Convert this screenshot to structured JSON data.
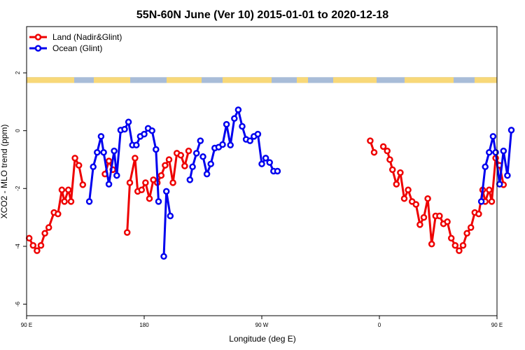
{
  "chart_data": {
    "type": "line",
    "title": "55N-60N June (Ver 10)   2015-01-01 to 2020-12-18",
    "xlabel": "Longitude (deg E)",
    "ylabel": "XCO2 - MLO trend (ppm)",
    "xlim": [
      90,
      450
    ],
    "ylim": [
      -6.4,
      3.6
    ],
    "x_ticks": [
      {
        "value": 90,
        "label": "90 E"
      },
      {
        "value": 180,
        "label": "180"
      },
      {
        "value": 270,
        "label": "90 W"
      },
      {
        "value": 360,
        "label": "0"
      },
      {
        "value": 450,
        "label": "90 E"
      },
      {
        "value": 540,
        "label": "180"
      }
    ],
    "y_ticks": [
      {
        "value": -6,
        "label": "-6"
      },
      {
        "value": -4,
        "label": "-4"
      },
      {
        "value": -2,
        "label": "-2"
      },
      {
        "value": 0,
        "label": "0"
      },
      {
        "value": 2,
        "label": "2"
      }
    ],
    "grid": false,
    "legend_position": "top-left",
    "land_ocean_strip": {
      "y_range": [
        1.65,
        1.85
      ],
      "ocean_color": "#a8bcd8",
      "land_color": "#f8d878"
    },
    "series": [
      {
        "name": "Land (Nadir&Glint)",
        "color": "#ee0000",
        "segments": [
          [
            [
              92,
              -3.72
            ],
            [
              95,
              -3.97
            ],
            [
              98,
              -4.15
            ],
            [
              101,
              -3.97
            ],
            [
              104,
              -3.55
            ],
            [
              107,
              -3.35
            ],
            [
              111,
              -2.83
            ],
            [
              114,
              -2.88
            ],
            [
              117,
              -2.05
            ],
            [
              119,
              -2.45
            ],
            [
              122,
              -2.05
            ],
            [
              124,
              -2.45
            ],
            [
              127,
              -0.95
            ],
            [
              130,
              -1.2
            ],
            [
              133,
              -1.87
            ]
          ],
          [
            [
              150,
              -1.5
            ],
            [
              153,
              -1.05
            ],
            [
              156,
              -1.35
            ]
          ],
          [
            [
              167,
              -3.52
            ],
            [
              169,
              -1.8
            ],
            [
              173,
              -0.95
            ],
            [
              175,
              -2.1
            ],
            [
              178,
              -2.05
            ],
            [
              181,
              -1.8
            ],
            [
              184,
              -2.35
            ],
            [
              187,
              -1.7
            ],
            [
              190,
              -1.8
            ],
            [
              193,
              -1.55
            ],
            [
              196,
              -1.2
            ],
            [
              199,
              -1.0
            ],
            [
              202,
              -1.8
            ],
            [
              205,
              -0.78
            ],
            [
              208,
              -0.85
            ],
            [
              211,
              -1.22
            ],
            [
              214,
              -0.7
            ]
          ],
          [
            [
              353,
              -0.35
            ],
            [
              356,
              -0.75
            ]
          ],
          [
            [
              363,
              -0.55
            ],
            [
              366,
              -0.7
            ],
            [
              368,
              -1.0
            ],
            [
              370,
              -1.35
            ],
            [
              373,
              -1.85
            ],
            [
              376,
              -1.45
            ],
            [
              379,
              -2.35
            ],
            [
              382,
              -2.05
            ],
            [
              385,
              -2.45
            ],
            [
              388,
              -2.55
            ],
            [
              391,
              -3.25
            ],
            [
              394,
              -3.0
            ],
            [
              397,
              -2.35
            ],
            [
              400,
              -3.92
            ],
            [
              403,
              -2.95
            ],
            [
              406,
              -2.95
            ],
            [
              409,
              -3.22
            ],
            [
              412,
              -3.15
            ],
            [
              415,
              -3.72
            ],
            [
              418,
              -3.97
            ],
            [
              421,
              -4.15
            ],
            [
              424,
              -3.97
            ],
            [
              427,
              -3.55
            ],
            [
              430,
              -3.35
            ],
            [
              433,
              -2.83
            ],
            [
              436,
              -2.88
            ],
            [
              439,
              -2.05
            ],
            [
              441,
              -2.45
            ],
            [
              444,
              -2.05
            ],
            [
              446,
              -2.45
            ],
            [
              449,
              -0.95
            ],
            [
              452,
              -1.2
            ],
            [
              455,
              -1.87
            ]
          ]
        ]
      },
      {
        "name": "Ocean (Glint)",
        "color": "#0000ee",
        "segments": [
          [
            [
              138,
              -2.45
            ],
            [
              141,
              -1.25
            ],
            [
              144,
              -0.75
            ],
            [
              147,
              -0.2
            ],
            [
              149,
              -0.75
            ],
            [
              153,
              -1.85
            ],
            [
              157,
              -0.7
            ],
            [
              159,
              -1.55
            ],
            [
              162,
              0.02
            ],
            [
              165,
              0.05
            ],
            [
              168,
              0.3
            ],
            [
              171,
              -0.5
            ],
            [
              174,
              -0.5
            ],
            [
              177,
              -0.2
            ],
            [
              180,
              -0.12
            ],
            [
              183,
              0.08
            ],
            [
              186,
              0.0
            ],
            [
              189,
              -0.65
            ],
            [
              191,
              -2.45
            ]
          ],
          [
            [
              195,
              -4.35
            ],
            [
              197,
              -2.1
            ],
            [
              200,
              -2.95
            ]
          ],
          [
            [
              215,
              -1.7
            ],
            [
              217,
              -1.25
            ],
            [
              220,
              -0.78
            ],
            [
              223,
              -0.35
            ]
          ],
          [
            [
              225,
              -0.9
            ],
            [
              228,
              -1.5
            ],
            [
              231,
              -1.15
            ],
            [
              234,
              -0.6
            ],
            [
              237,
              -0.57
            ],
            [
              240,
              -0.48
            ],
            [
              243,
              0.22
            ],
            [
              246,
              -0.5
            ],
            [
              249,
              0.42
            ],
            [
              252,
              0.72
            ],
            [
              255,
              0.15
            ],
            [
              258,
              -0.3
            ],
            [
              261,
              -0.35
            ],
            [
              264,
              -0.2
            ],
            [
              267,
              -0.12
            ],
            [
              270,
              -1.15
            ],
            [
              273,
              -0.95
            ],
            [
              276,
              -1.1
            ],
            [
              279,
              -1.4
            ],
            [
              282,
              -1.4
            ]
          ],
          [
            [
              438,
              -2.45
            ],
            [
              441,
              -1.25
            ],
            [
              444,
              -0.75
            ],
            [
              447,
              -0.2
            ],
            [
              449,
              -0.75
            ],
            [
              452,
              -1.85
            ],
            [
              455,
              -0.7
            ],
            [
              458,
              -1.55
            ],
            [
              461,
              0.02
            ]
          ]
        ]
      }
    ]
  }
}
